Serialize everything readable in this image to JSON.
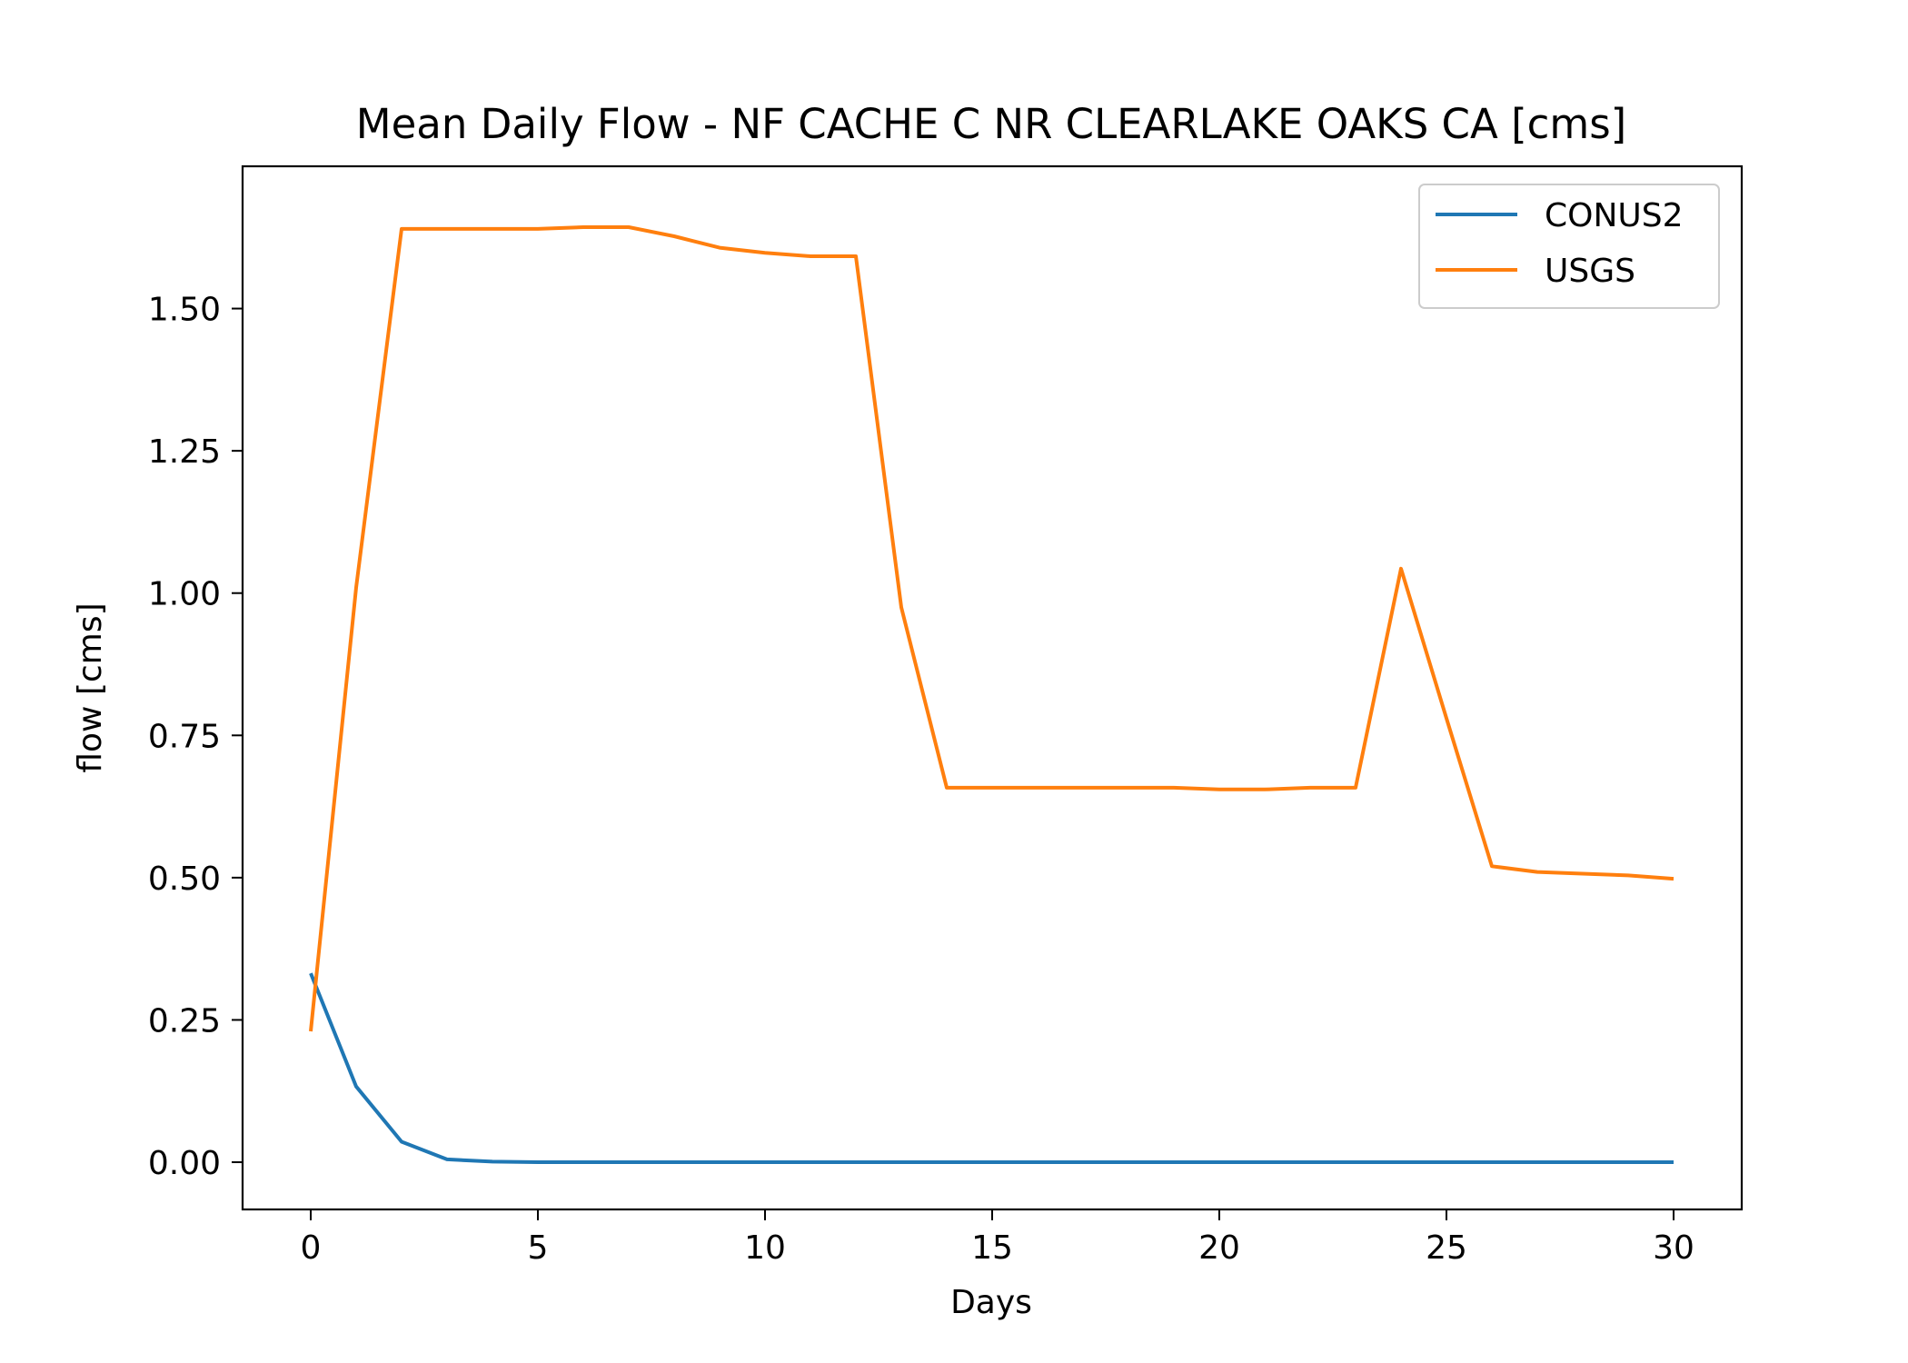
{
  "chart_data": {
    "type": "line",
    "title": "Mean Daily Flow - NF CACHE C NR CLEARLAKE OAKS CA [cms]",
    "xlabel": "Days",
    "ylabel": "flow [cms]",
    "xlim": [
      -1.5,
      31.5
    ],
    "ylim": [
      -0.083,
      1.75
    ],
    "xticks": [
      0,
      5,
      10,
      15,
      20,
      25,
      30
    ],
    "xtick_labels": [
      "0",
      "5",
      "10",
      "15",
      "20",
      "25",
      "30"
    ],
    "yticks": [
      0,
      0.25,
      0.5,
      0.75,
      1.0,
      1.25,
      1.5
    ],
    "ytick_labels": [
      "0.00",
      "0.25",
      "0.50",
      "0.75",
      "1.00",
      "1.25",
      "1.50"
    ],
    "grid": false,
    "legend_position": "upper right",
    "x": [
      0,
      1,
      2,
      3,
      4,
      5,
      6,
      7,
      8,
      9,
      10,
      11,
      12,
      13,
      14,
      15,
      16,
      17,
      18,
      19,
      20,
      21,
      22,
      23,
      24,
      25,
      26,
      27,
      28,
      29,
      30
    ],
    "series": [
      {
        "name": "CONUS2",
        "color": "#1f77b4",
        "values": [
          0.332,
          0.133,
          0.036,
          0.005,
          0.001,
          0,
          0,
          0,
          0,
          0,
          0,
          0,
          0,
          0,
          0,
          0,
          0,
          0,
          0,
          0,
          0,
          0,
          0,
          0,
          0,
          0,
          0,
          0,
          0,
          0,
          0
        ]
      },
      {
        "name": "USGS",
        "color": "#ff7f0e",
        "values": [
          0.23,
          1.01,
          1.64,
          1.64,
          1.64,
          1.64,
          1.643,
          1.643,
          1.627,
          1.607,
          1.598,
          1.592,
          1.592,
          0.975,
          0.658,
          0.658,
          0.658,
          0.658,
          0.658,
          0.658,
          0.655,
          0.655,
          0.658,
          0.658,
          1.043,
          0.78,
          0.52,
          0.51,
          0.507,
          0.504,
          0.498
        ]
      }
    ]
  }
}
